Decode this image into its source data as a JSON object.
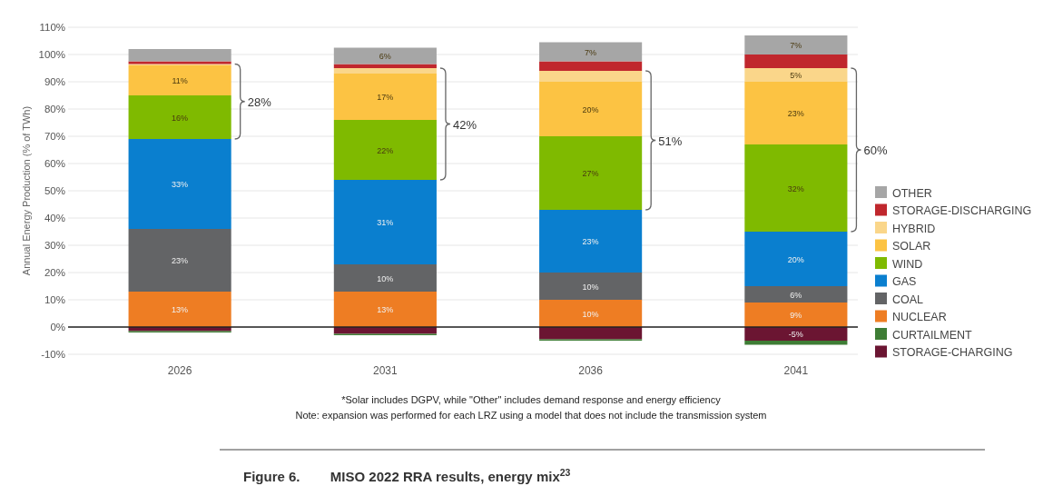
{
  "chart_data": {
    "type": "bar",
    "stacked": true,
    "title": "Figure 6.        MISO 2022 RRA results, energy mix$^{23}$",
    "ylabel": "Annual Energy Production (% of TWh)",
    "categories": [
      "2026",
      "2031",
      "2036",
      "2041"
    ],
    "series": [
      {
        "name": "NUCLEAR",
        "color": "#ee7d23",
        "values": [
          13,
          13,
          10,
          9
        ],
        "value_labels": [
          "13%",
          "13%",
          "10%",
          "9%"
        ]
      },
      {
        "name": "COAL",
        "color": "#636466",
        "values": [
          23,
          10,
          10,
          6
        ],
        "value_labels": [
          "23%",
          "10%",
          "10%",
          "6%"
        ]
      },
      {
        "name": "GAS",
        "color": "#0a7fcf",
        "values": [
          33,
          31,
          23,
          20
        ],
        "value_labels": [
          "33%",
          "31%",
          "23%",
          "20%"
        ]
      },
      {
        "name": "WIND",
        "color": "#7fba00",
        "values": [
          16,
          22,
          27,
          32
        ],
        "value_labels": [
          "16%",
          "22%",
          "27%",
          "32%"
        ]
      },
      {
        "name": "SOLAR",
        "color": "#fcc343",
        "values": [
          11,
          17,
          20,
          23
        ],
        "value_labels": [
          "11%",
          "17%",
          "20%",
          "23%"
        ]
      },
      {
        "name": "HYBRID",
        "color": "#fad68a",
        "values": [
          0.5,
          2,
          4,
          5
        ],
        "value_labels": [
          null,
          null,
          null,
          "5%"
        ]
      },
      {
        "name": "STORAGE-DISCHARGING",
        "color": "#c0272d",
        "values": [
          1,
          1.5,
          3.5,
          5
        ],
        "value_labels": [
          null,
          null,
          null,
          null
        ]
      },
      {
        "name": "OTHER",
        "color": "#a6a6a6",
        "values": [
          4.5,
          6,
          7,
          7
        ],
        "value_labels": [
          null,
          "6%",
          "7%",
          "7%"
        ]
      },
      {
        "name": "STORAGE-CHARGING",
        "color": "#6b1532",
        "values": [
          -1.5,
          -2.5,
          -4.5,
          -5
        ],
        "value_labels": [
          null,
          null,
          null,
          "-5%"
        ]
      },
      {
        "name": "CURTAILMENT",
        "color": "#3e7d35",
        "values": [
          -0.5,
          -0.5,
          -0.5,
          -1.5
        ],
        "value_labels": [
          null,
          null,
          null,
          null
        ]
      }
    ],
    "ylim": [
      -10,
      110
    ],
    "yticks": [
      {
        "value": -10,
        "label": "-10%"
      },
      {
        "value": 0,
        "label": "0%"
      },
      {
        "value": 10,
        "label": "10%"
      },
      {
        "value": 20,
        "label": "20%"
      },
      {
        "value": 30,
        "label": "30%"
      },
      {
        "value": 40,
        "label": "40%"
      },
      {
        "value": 50,
        "label": "50%"
      },
      {
        "value": 60,
        "label": "60%"
      },
      {
        "value": 70,
        "label": "70%"
      },
      {
        "value": 80,
        "label": "80%"
      },
      {
        "value": 90,
        "label": "90%"
      },
      {
        "value": 100,
        "label": "100%"
      },
      {
        "value": 110,
        "label": "110%"
      }
    ],
    "grid": "y",
    "legend": "right",
    "annotations": [
      "28%",
      "42%",
      "51%",
      "60%",
      "*Solar includes DGPV, while \"Other\" includes demand response and energy efficiency",
      "Note: expansion was performed for each LRZ using a model that does not include the transmission system"
    ]
  }
}
